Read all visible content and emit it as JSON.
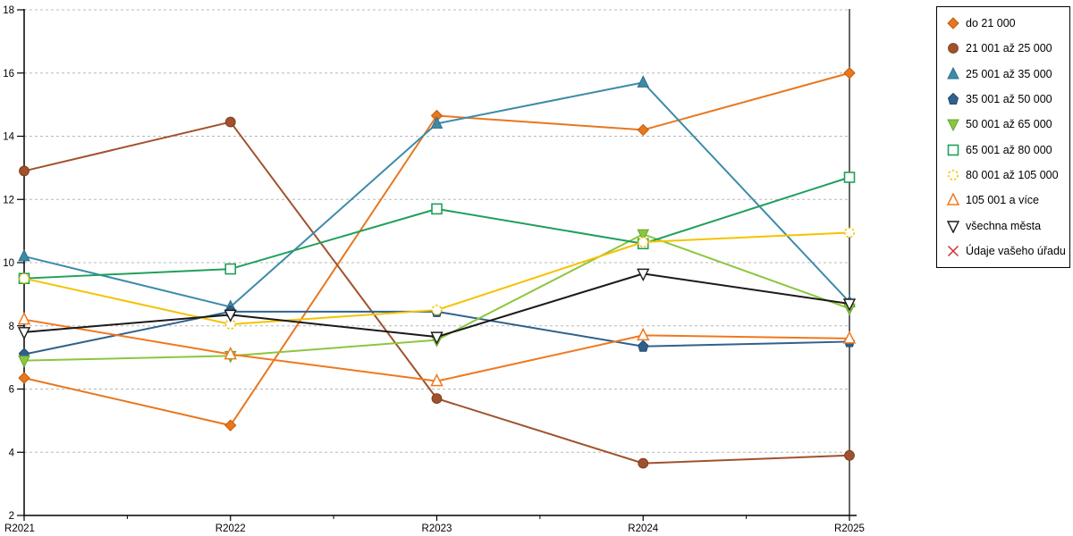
{
  "chart": {
    "background": "#ffffff",
    "grid_color": "#b8b8b8",
    "axis_color": "#000000",
    "tick_label_color": "#000000"
  },
  "legend": {
    "border_color": "#000000",
    "background": "#ffffff",
    "position": "right"
  },
  "chart_data": {
    "type": "line",
    "title": "",
    "xlabel": "",
    "ylabel": "",
    "x_labels": [
      "R2021",
      "R2022",
      "R2023",
      "R2024",
      "R2025"
    ],
    "y_ticks": [
      2,
      4,
      6,
      8,
      10,
      12,
      14,
      16,
      18
    ],
    "ylim": [
      2,
      18
    ],
    "grid": "horizontal-dashed",
    "legend_position": "right",
    "series": [
      {
        "name": "do 21 000",
        "marker": "diamond",
        "color": "#E8771E",
        "edge": "#C05E0E",
        "values": [
          6.35,
          4.85,
          14.65,
          14.2,
          16.0
        ]
      },
      {
        "name": "21 001 až 25 000",
        "marker": "circle",
        "color": "#A0522D",
        "edge": "#7E3D1D",
        "values": [
          12.9,
          14.45,
          5.7,
          3.65,
          3.9
        ]
      },
      {
        "name": "25 001 až 35 000",
        "marker": "triangle-up",
        "color": "#3D8BA8",
        "edge": "#2E6E86",
        "values": [
          10.2,
          8.6,
          14.4,
          15.7,
          8.75
        ]
      },
      {
        "name": "35 001 až 50 000",
        "marker": "pentagon",
        "color": "#30618C",
        "edge": "#234A6D",
        "values": [
          7.1,
          8.45,
          8.45,
          7.35,
          7.5
        ]
      },
      {
        "name": "50 001 až 65 000",
        "marker": "triangle-down",
        "color": "#8CC63E",
        "edge": "#63A532",
        "values": [
          6.9,
          7.05,
          7.55,
          10.9,
          8.55
        ]
      },
      {
        "name": "65 001 až 80 000",
        "marker": "square-open",
        "color": "#1FA05A",
        "edge": "#1FA05A",
        "values": [
          9.5,
          9.8,
          11.7,
          10.6,
          12.7
        ]
      },
      {
        "name": "80 001 až 105 000",
        "marker": "circle-open-dashed",
        "color": "#F5C201",
        "edge": "#F5C201",
        "values": [
          9.5,
          8.05,
          8.5,
          10.65,
          10.95
        ]
      },
      {
        "name": "105 001 a více",
        "marker": "triangle-up-open",
        "color": "#F0781E",
        "edge": "#F0781E",
        "values": [
          8.2,
          7.1,
          6.25,
          7.7,
          7.6
        ]
      },
      {
        "name": "všechna města",
        "marker": "triangle-down-open",
        "color": "#1A1A1A",
        "edge": "#1A1A1A",
        "values": [
          7.8,
          8.35,
          7.65,
          9.65,
          8.7
        ]
      },
      {
        "name": "Údaje vašeho úřadu",
        "marker": "x-cross",
        "color": "#CC3333",
        "edge": "#CC3333",
        "values": []
      }
    ]
  }
}
